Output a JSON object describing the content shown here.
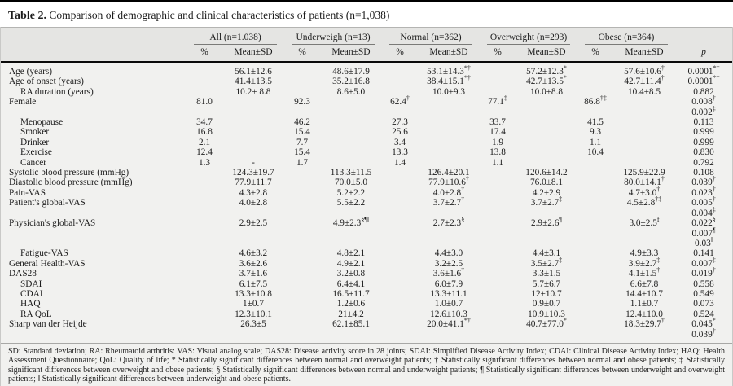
{
  "title": {
    "label": "Table 2.",
    "text": "Comparison of demographic and clinical characteristics of patients (n=1,038)"
  },
  "table": {
    "groups": [
      {
        "name": "All (n=1.038)"
      },
      {
        "name": "Underweigh (n=13)"
      },
      {
        "name": "Normal (n=362)"
      },
      {
        "name": "Overweight (n=293)"
      },
      {
        "name": "Obese (n=364)"
      }
    ],
    "sub": {
      "pct": "%",
      "mean": "Mean±SD"
    },
    "p_header": "p",
    "rows": [
      {
        "label": "Age (years)",
        "indent": false,
        "cells": [
          "",
          "56.1±12.6",
          "",
          "48.6±17.9",
          "",
          "53.1±14.3*†",
          "",
          "57.2±12.3*",
          "",
          "57.6±10.6†",
          "0.0001*†"
        ]
      },
      {
        "label": "Age of onset (years)",
        "indent": false,
        "cells": [
          "",
          "41.4±13.5",
          "",
          "35.2±16.8",
          "",
          "38.4±15.1*†",
          "",
          "42.7±13.5*",
          "",
          "42.7±11.4†",
          "0.0001*†"
        ]
      },
      {
        "label": "RA duration (years)",
        "indent": true,
        "cells": [
          "",
          "10.2± 8.8",
          "",
          "8.6±5.0",
          "",
          "10.0±9.3",
          "",
          "10.0±8.8",
          "",
          "10.4±8.5",
          "0.882"
        ]
      },
      {
        "label": "Female",
        "indent": false,
        "cells": [
          "81.0",
          "",
          "92.3",
          "",
          "62.4†",
          "",
          "77.1‡",
          "",
          "86.8†‡",
          "",
          "0.008†\n0.002‡"
        ]
      },
      {
        "label": "Menopause",
        "indent": true,
        "cells": [
          "34.7",
          "",
          "46.2",
          "",
          "27.3",
          "",
          "33.7",
          "",
          "41.5",
          "",
          "0.113"
        ]
      },
      {
        "label": "Smoker",
        "indent": true,
        "cells": [
          "16.8",
          "",
          "15.4",
          "",
          "25.6",
          "",
          "17.4",
          "",
          "9.3",
          "",
          "0.999"
        ]
      },
      {
        "label": "Drinker",
        "indent": true,
        "cells": [
          "2.1",
          "",
          "7.7",
          "",
          "3.4",
          "",
          "1.9",
          "",
          "1.1",
          "",
          "0.999"
        ]
      },
      {
        "label": "Exercise",
        "indent": true,
        "cells": [
          "12.4",
          "",
          "15.4",
          "",
          "13.3",
          "",
          "13.8",
          "",
          "10.4",
          "",
          "0.830"
        ]
      },
      {
        "label": "Cancer",
        "indent": true,
        "cells": [
          "1.3",
          "-",
          "1.7",
          "",
          "1.4",
          "",
          "1.1",
          "",
          "",
          "",
          "0.792"
        ]
      },
      {
        "label": "Systolic blood pressure (mmHg)",
        "indent": false,
        "cells": [
          "",
          "124.3±19.7",
          "",
          "113.3±11.5",
          "",
          "126.4±20.1",
          "",
          "120.6±14.2",
          "",
          "125.9±22.9",
          "0.108"
        ]
      },
      {
        "label": "Diastolic blood pressure (mmHg)",
        "indent": false,
        "cells": [
          "",
          "77.9±11.7",
          "",
          "70.0±5.0",
          "",
          "77.9±10.6†",
          "",
          "76.0±8.1",
          "",
          "80.0±14.1†",
          "0.039†"
        ]
      },
      {
        "label": "Pain-VAS",
        "indent": false,
        "cells": [
          "",
          "4.3±2.8",
          "",
          "5.2±2.2",
          "",
          "4.0±2.8†",
          "",
          "4.2±2.9",
          "",
          "4.7±3.0†",
          "0.023†"
        ]
      },
      {
        "label": "Patient's global-VAS",
        "indent": false,
        "cells": [
          "",
          "4.0±2.8",
          "",
          "5.5±2.2",
          "",
          "3.7±2.7†",
          "",
          "3.7±2.7‡",
          "",
          "4.5±2.8†‡",
          "0.005†\n0.004‡"
        ]
      },
      {
        "label": "Physician's global-VAS",
        "indent": false,
        "cells": [
          "",
          "2.9±2.5",
          "",
          "4.9±2.3§¶‖",
          "",
          "2.7±2.3§",
          "",
          "2.9±2.6¶",
          "",
          "3.0±2.5f",
          "0.022§\n0.007¶\n0.03‖"
        ]
      },
      {
        "label": "Fatigue-VAS",
        "indent": true,
        "cells": [
          "",
          "4.6±3.2",
          "",
          "4.8±2.1",
          "",
          "4.4±3.0",
          "",
          "4.4±3.1",
          "",
          "4.9±3.3",
          "0.141"
        ]
      },
      {
        "label": "General Health-VAS",
        "indent": false,
        "cells": [
          "",
          "3.6±2.6",
          "",
          "4.9±2.1",
          "",
          "3.2±2.5",
          "",
          "3.5±2.7‡",
          "",
          "3.9±2.7‡",
          "0.007‡"
        ]
      },
      {
        "label": "DAS28",
        "indent": false,
        "cells": [
          "",
          "3.7±1.6",
          "",
          "3.2±0.8",
          "",
          "3.6±1.6†",
          "",
          "3.3±1.5",
          "",
          "4.1±1.5†",
          "0.019†"
        ]
      },
      {
        "label": "SDAI",
        "indent": true,
        "cells": [
          "",
          "6.1±7.5",
          "",
          "6.4±4.1",
          "",
          "6.0±7.9",
          "",
          "5.7±6.7",
          "",
          "6.6±7.8",
          "0.558"
        ]
      },
      {
        "label": "CDAI",
        "indent": true,
        "cells": [
          "",
          "13.3±10.8",
          "",
          "16.5±11.7",
          "",
          "13.3±11.1",
          "",
          "12±10.7",
          "",
          "14.4±10.7",
          "0.549"
        ]
      },
      {
        "label": "HAQ",
        "indent": true,
        "cells": [
          "",
          "1±0.7",
          "",
          "1.2±0.6",
          "",
          "1.0±0.7",
          "",
          "0.9±0.7",
          "",
          "1.1±0.7",
          "0.073"
        ]
      },
      {
        "label": "RA QoL",
        "indent": true,
        "cells": [
          "",
          "12.3±10.1",
          "",
          "21±4.2",
          "",
          "12.6±10.3",
          "",
          "10.9±10.3",
          "",
          "12.4±10.0",
          "0.524"
        ]
      },
      {
        "label": "Sharp van der Heijde",
        "indent": false,
        "cells": [
          "",
          "26.3±5",
          "",
          "62.1±85.1",
          "",
          "20.0±41.1*†",
          "",
          "40.7±77.0*",
          "",
          "18.3±29.7†",
          "0.045*\n0.039†"
        ]
      }
    ]
  },
  "footnote": "SD: Standard deviation; RA: Rheumatoid arthritis: VAS: Visual analog scale; DAS28: Disease activity score in 28 joints; SDAI: Simplified Disease Activity Index; CDAI: Clinical Disease Activity Index; HAQ: Health Assessment Questionnaire; QoL: Quality of life; * Statistically significant differences between normal and overweight patients; † Statistically significant differences between normal and obese patients; ‡ Statistically significant differences between overweight and obese patients; § Statistically significant differences between normal and underweight patients; ¶ Statistically significant differences between underweight and overweight patients; ‖ Statistically significant differences between underweight and obese patients."
}
